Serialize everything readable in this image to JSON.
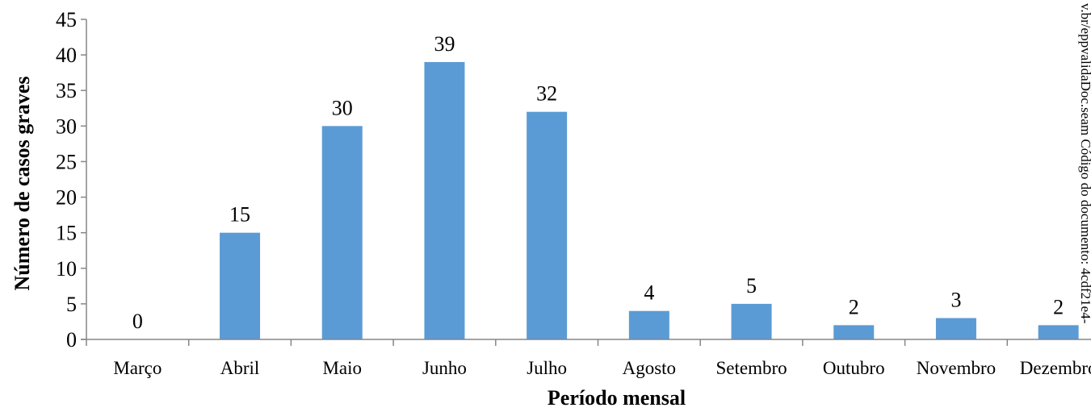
{
  "chart_data": {
    "type": "bar",
    "categories": [
      "Março",
      "Abril",
      "Maio",
      "Junho",
      "Julho",
      "Agosto",
      "Setembro",
      "Outubro",
      "Novembro",
      "Dezembro"
    ],
    "values": [
      0,
      15,
      30,
      39,
      32,
      4,
      5,
      2,
      3,
      2
    ],
    "data_labels": [
      "0",
      "15",
      "30",
      "39",
      "32",
      "4",
      "5",
      "2",
      "3",
      "2"
    ],
    "xlabel": "Período mensal",
    "ylabel": "Número de casos graves",
    "ylim": [
      0,
      45
    ],
    "yticks": [
      "0",
      "5",
      "10",
      "15",
      "20",
      "25",
      "30",
      "35",
      "40",
      "45"
    ],
    "ytick_values": [
      0,
      5,
      10,
      15,
      20,
      25,
      30,
      35,
      40,
      45
    ],
    "grid": false,
    "legend": "none",
    "bar_color": "#5b9bd5"
  },
  "side_text": "v.br/eppvalidaDoc.seam Código do documento: 4cdf21e4-"
}
